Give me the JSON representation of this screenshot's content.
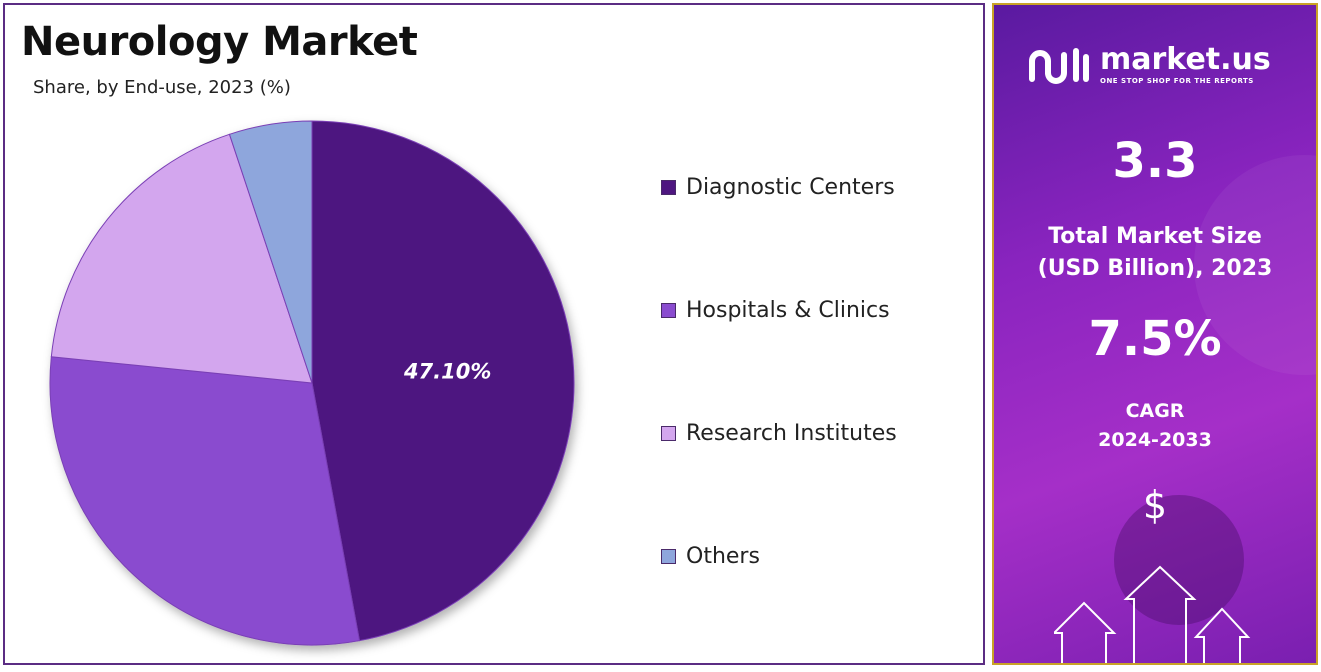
{
  "chart_data": {
    "type": "pie",
    "title": "Neurology Market",
    "subtitle": "Share, by End-use, 2023 (%)",
    "categories": [
      "Diagnostic Centers",
      "Hospitals & Clinics",
      "Research Institutes",
      "Others"
    ],
    "values": [
      47.1,
      29.5,
      18.3,
      5.1
    ],
    "colors": [
      "#4e1680",
      "#8a4ccf",
      "#d3a6ee",
      "#8ea6dc"
    ],
    "data_labels": [
      "47.10%",
      "",
      "",
      ""
    ],
    "legend": "right"
  },
  "sidebar": {
    "logo_name": "market.us",
    "logo_tagline": "ONE STOP SHOP FOR THE REPORTS",
    "market_size_value": "3.3",
    "market_size_label_line1": "Total Market Size",
    "market_size_label_line2": "(USD Billion), 2023",
    "cagr_value": "7.5%",
    "cagr_label_line1": "CAGR",
    "cagr_label_line2": "2024-2033",
    "currency_symbol": "$"
  }
}
